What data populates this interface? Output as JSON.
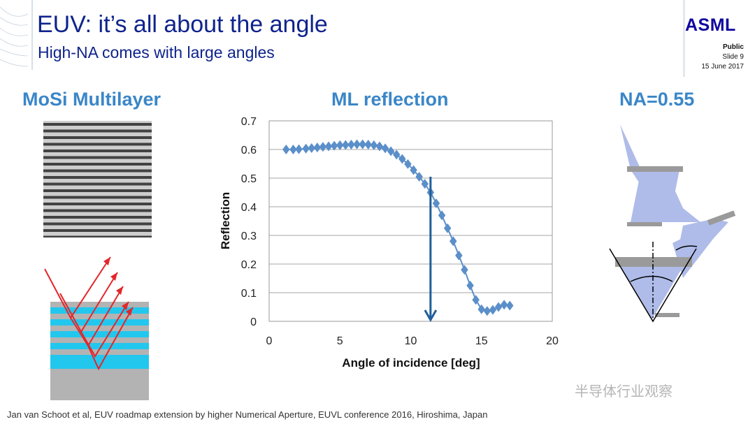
{
  "header": {
    "title": "EUV: it’s all about the angle",
    "subtitle": "High-NA comes with large angles",
    "logo": "ASML",
    "classification": "Public",
    "slide": "Slide 9",
    "date": "15 June 2017"
  },
  "sections": {
    "left_heading": "MoSi Multilayer",
    "middle_heading": "ML reflection",
    "right_heading": "NA=0.55"
  },
  "footer": {
    "citation": "Jan van Schoot et al, EUV roadmap extension by higher Numerical Aperture, EUVL conference 2016, Hiroshima, Japan",
    "watermark": "半导体行业观察"
  },
  "colors": {
    "title": "#0f238c",
    "heading": "#3a86c8",
    "series": "#5b8fc9",
    "arrow": "#1f5f9a",
    "rays": "#e3262a",
    "layer_cyan": "#22c7ee",
    "layer_gray": "#9e9e9e"
  },
  "chart_data": {
    "type": "scatter",
    "title": "",
    "xlabel": "Angle of incidence [deg]",
    "ylabel": "Reflection",
    "xlim": [
      0,
      20
    ],
    "ylim": [
      0,
      0.7
    ],
    "xticks": [
      "0",
      "5",
      "10",
      "15",
      "20"
    ],
    "yticks": [
      "0",
      "0.1",
      "0.2",
      "0.3",
      "0.4",
      "0.5",
      "0.6",
      "0.7"
    ],
    "grid": "horizontal",
    "marker": "diamond",
    "series": [
      {
        "x": [
          1.2,
          1.7,
          2.1,
          2.6,
          3.0,
          3.4,
          3.8,
          4.2,
          4.6,
          5.0,
          5.4,
          5.8,
          6.2,
          6.6,
          7.0,
          7.4,
          7.8,
          8.2,
          8.6,
          9.0,
          9.4,
          9.8,
          10.2,
          10.6,
          11.0,
          11.4,
          11.8,
          12.2,
          12.6,
          13.0,
          13.4,
          13.8,
          14.2,
          14.6,
          15.0,
          15.4,
          15.8,
          16.2,
          16.6,
          17.0
        ],
        "y": [
          0.6,
          0.6,
          0.601,
          0.603,
          0.605,
          0.607,
          0.609,
          0.611,
          0.613,
          0.615,
          0.616,
          0.617,
          0.618,
          0.618,
          0.617,
          0.615,
          0.611,
          0.604,
          0.594,
          0.582,
          0.567,
          0.549,
          0.528,
          0.505,
          0.48,
          0.45,
          0.412,
          0.37,
          0.325,
          0.28,
          0.23,
          0.18,
          0.125,
          0.075,
          0.042,
          0.036,
          0.04,
          0.05,
          0.058,
          0.055
        ]
      }
    ],
    "annotations": [
      {
        "type": "arrow",
        "x": 11.4,
        "y_from": 0.505,
        "y_to": 0.0
      }
    ]
  }
}
